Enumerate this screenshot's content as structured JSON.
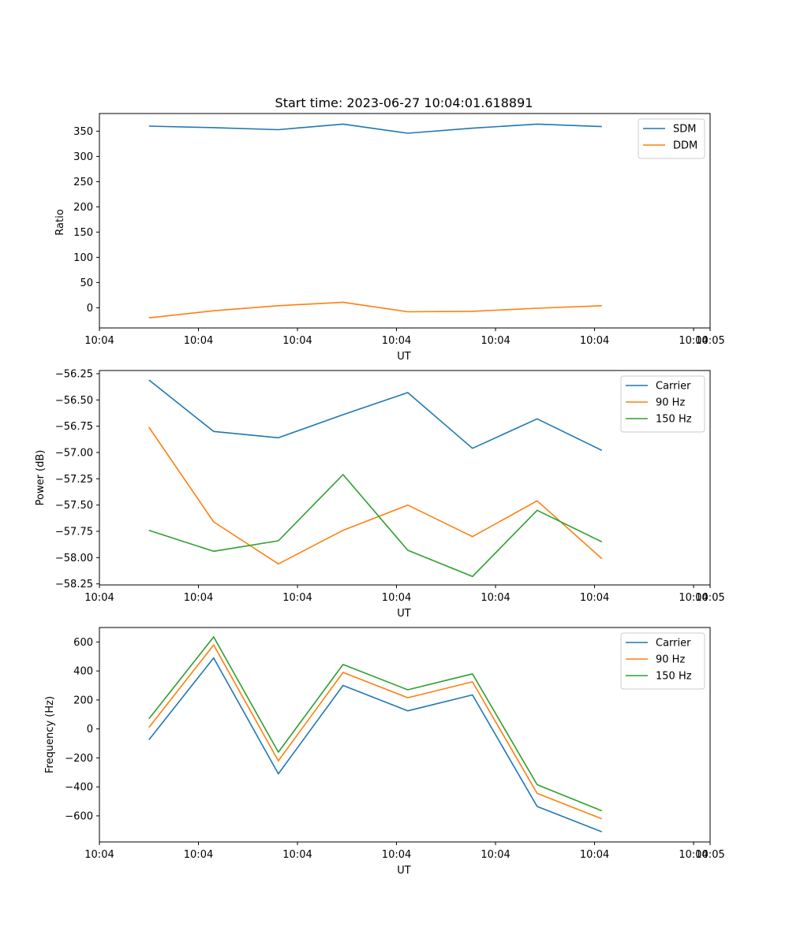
{
  "chart_data": [
    {
      "type": "line",
      "title": "Start time: 2023-06-27 10:04:01.618891",
      "xlabel": "UT",
      "ylabel": "Ratio",
      "x_tick_labels": [
        "10:04",
        "10:04",
        "10:04",
        "10:04",
        "10:04",
        "10:04",
        "10:04"
      ],
      "x_end_tick_label": "10:05",
      "xlim": [
        0,
        9.25
      ],
      "x_ticks": [
        0,
        1.5,
        3,
        4.5,
        6,
        7.5,
        9
      ],
      "x": [
        0.75,
        1.73,
        2.71,
        3.69,
        4.67,
        5.65,
        6.63,
        7.61
      ],
      "ylim": [
        -40,
        385
      ],
      "y_ticks": [
        0,
        50,
        100,
        150,
        200,
        250,
        300,
        350
      ],
      "y_tick_labels": [
        "0",
        "50",
        "100",
        "150",
        "200",
        "250",
        "300",
        "350"
      ],
      "legend_position": "top-right",
      "series": [
        {
          "name": "SDM",
          "color": "#1f77b4",
          "values": [
            360,
            357,
            353,
            364,
            346,
            356,
            364,
            359
          ]
        },
        {
          "name": "DDM",
          "color": "#ff7f0e",
          "values": [
            -20,
            -6,
            4,
            11,
            -8,
            -7,
            -1,
            4
          ]
        }
      ]
    },
    {
      "type": "line",
      "xlabel": "UT",
      "ylabel": "Power (dB)",
      "x_tick_labels": [
        "10:04",
        "10:04",
        "10:04",
        "10:04",
        "10:04",
        "10:04",
        "10:04"
      ],
      "x_end_tick_label": "10:05",
      "xlim": [
        0,
        9.25
      ],
      "x_ticks": [
        0,
        1.5,
        3,
        4.5,
        6,
        7.5,
        9
      ],
      "x": [
        0.75,
        1.73,
        2.71,
        3.69,
        4.67,
        5.65,
        6.63,
        7.61
      ],
      "ylim": [
        -58.26,
        -56.22
      ],
      "y_ticks": [
        -56.25,
        -56.5,
        -56.75,
        -57.0,
        -57.25,
        -57.5,
        -57.75,
        -58.0,
        -58.25
      ],
      "y_tick_labels": [
        "−56.25",
        "−56.50",
        "−56.75",
        "−57.00",
        "−57.25",
        "−57.50",
        "−57.75",
        "−58.00",
        "−58.25"
      ],
      "legend_position": "top-right",
      "series": [
        {
          "name": "Carrier",
          "color": "#1f77b4",
          "values": [
            -56.31,
            -56.8,
            -56.86,
            -56.64,
            -56.43,
            -56.96,
            -56.68,
            -56.98
          ]
        },
        {
          "name": "90 Hz",
          "color": "#ff7f0e",
          "values": [
            -56.76,
            -57.66,
            -58.06,
            -57.74,
            -57.5,
            -57.8,
            -57.46,
            -58.01
          ]
        },
        {
          "name": "150 Hz",
          "color": "#2ca02c",
          "values": [
            -57.74,
            -57.94,
            -57.84,
            -57.21,
            -57.93,
            -58.18,
            -57.55,
            -57.85
          ]
        }
      ]
    },
    {
      "type": "line",
      "xlabel": "UT",
      "ylabel": "Frequency (Hz)",
      "x_tick_labels": [
        "10:04",
        "10:04",
        "10:04",
        "10:04",
        "10:04",
        "10:04",
        "10:04"
      ],
      "x_end_tick_label": "10:05",
      "xlim": [
        0,
        9.25
      ],
      "x_ticks": [
        0,
        1.5,
        3,
        4.5,
        6,
        7.5,
        9
      ],
      "x": [
        0.75,
        1.73,
        2.71,
        3.69,
        4.67,
        5.65,
        6.63,
        7.61
      ],
      "ylim": [
        -780,
        700
      ],
      "y_ticks": [
        -600,
        -400,
        -200,
        0,
        200,
        400,
        600
      ],
      "y_tick_labels": [
        "−600",
        "−400",
        "−200",
        "0",
        "200",
        "400",
        "600"
      ],
      "legend_position": "top-right",
      "series": [
        {
          "name": "Carrier",
          "color": "#1f77b4",
          "values": [
            -75,
            490,
            -310,
            300,
            125,
            235,
            -535,
            -710
          ]
        },
        {
          "name": "90 Hz",
          "color": "#ff7f0e",
          "values": [
            10,
            580,
            -220,
            390,
            215,
            325,
            -445,
            -620
          ]
        },
        {
          "name": "150 Hz",
          "color": "#2ca02c",
          "values": [
            70,
            635,
            -160,
            445,
            270,
            380,
            -385,
            -565
          ]
        }
      ]
    }
  ]
}
